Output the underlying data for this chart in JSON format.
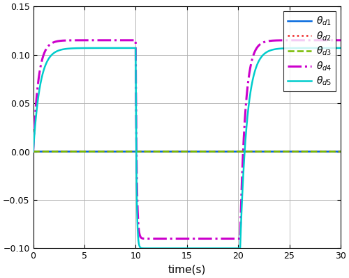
{
  "title": "",
  "xlabel": "time(s)",
  "xlim": [
    0,
    30
  ],
  "ylim": [
    -0.1,
    0.15
  ],
  "yticks": [
    -0.1,
    -0.05,
    0,
    0.05,
    0.1,
    0.15
  ],
  "xticks": [
    0,
    5,
    10,
    15,
    20,
    25,
    30
  ],
  "lines": {
    "theta_d1": {
      "color": "#0066DD",
      "lw": 1.8,
      "ls": "-"
    },
    "theta_d2": {
      "color": "#EE2222",
      "lw": 1.8,
      "ls": ":"
    },
    "theta_d3": {
      "color": "#77BB00",
      "lw": 1.8,
      "ls": "--"
    },
    "theta_d4": {
      "color": "#CC00CC",
      "lw": 2.2,
      "ls": "-.",
      "high": 0.115,
      "low": -0.09,
      "k_rise1": 2.0,
      "k_fall": 10.0,
      "k_rise2": 4.0,
      "t_fall": 10.0,
      "t_rise2": 20.2
    },
    "theta_d5": {
      "color": "#00CCCC",
      "lw": 1.8,
      "ls": "-",
      "high": 0.107,
      "low": -0.1,
      "k_rise1": 1.5,
      "k_fall": 12.0,
      "k_rise2": 3.5,
      "t_fall": 10.0,
      "t_rise2": 20.2
    }
  },
  "background_color": "#ffffff"
}
